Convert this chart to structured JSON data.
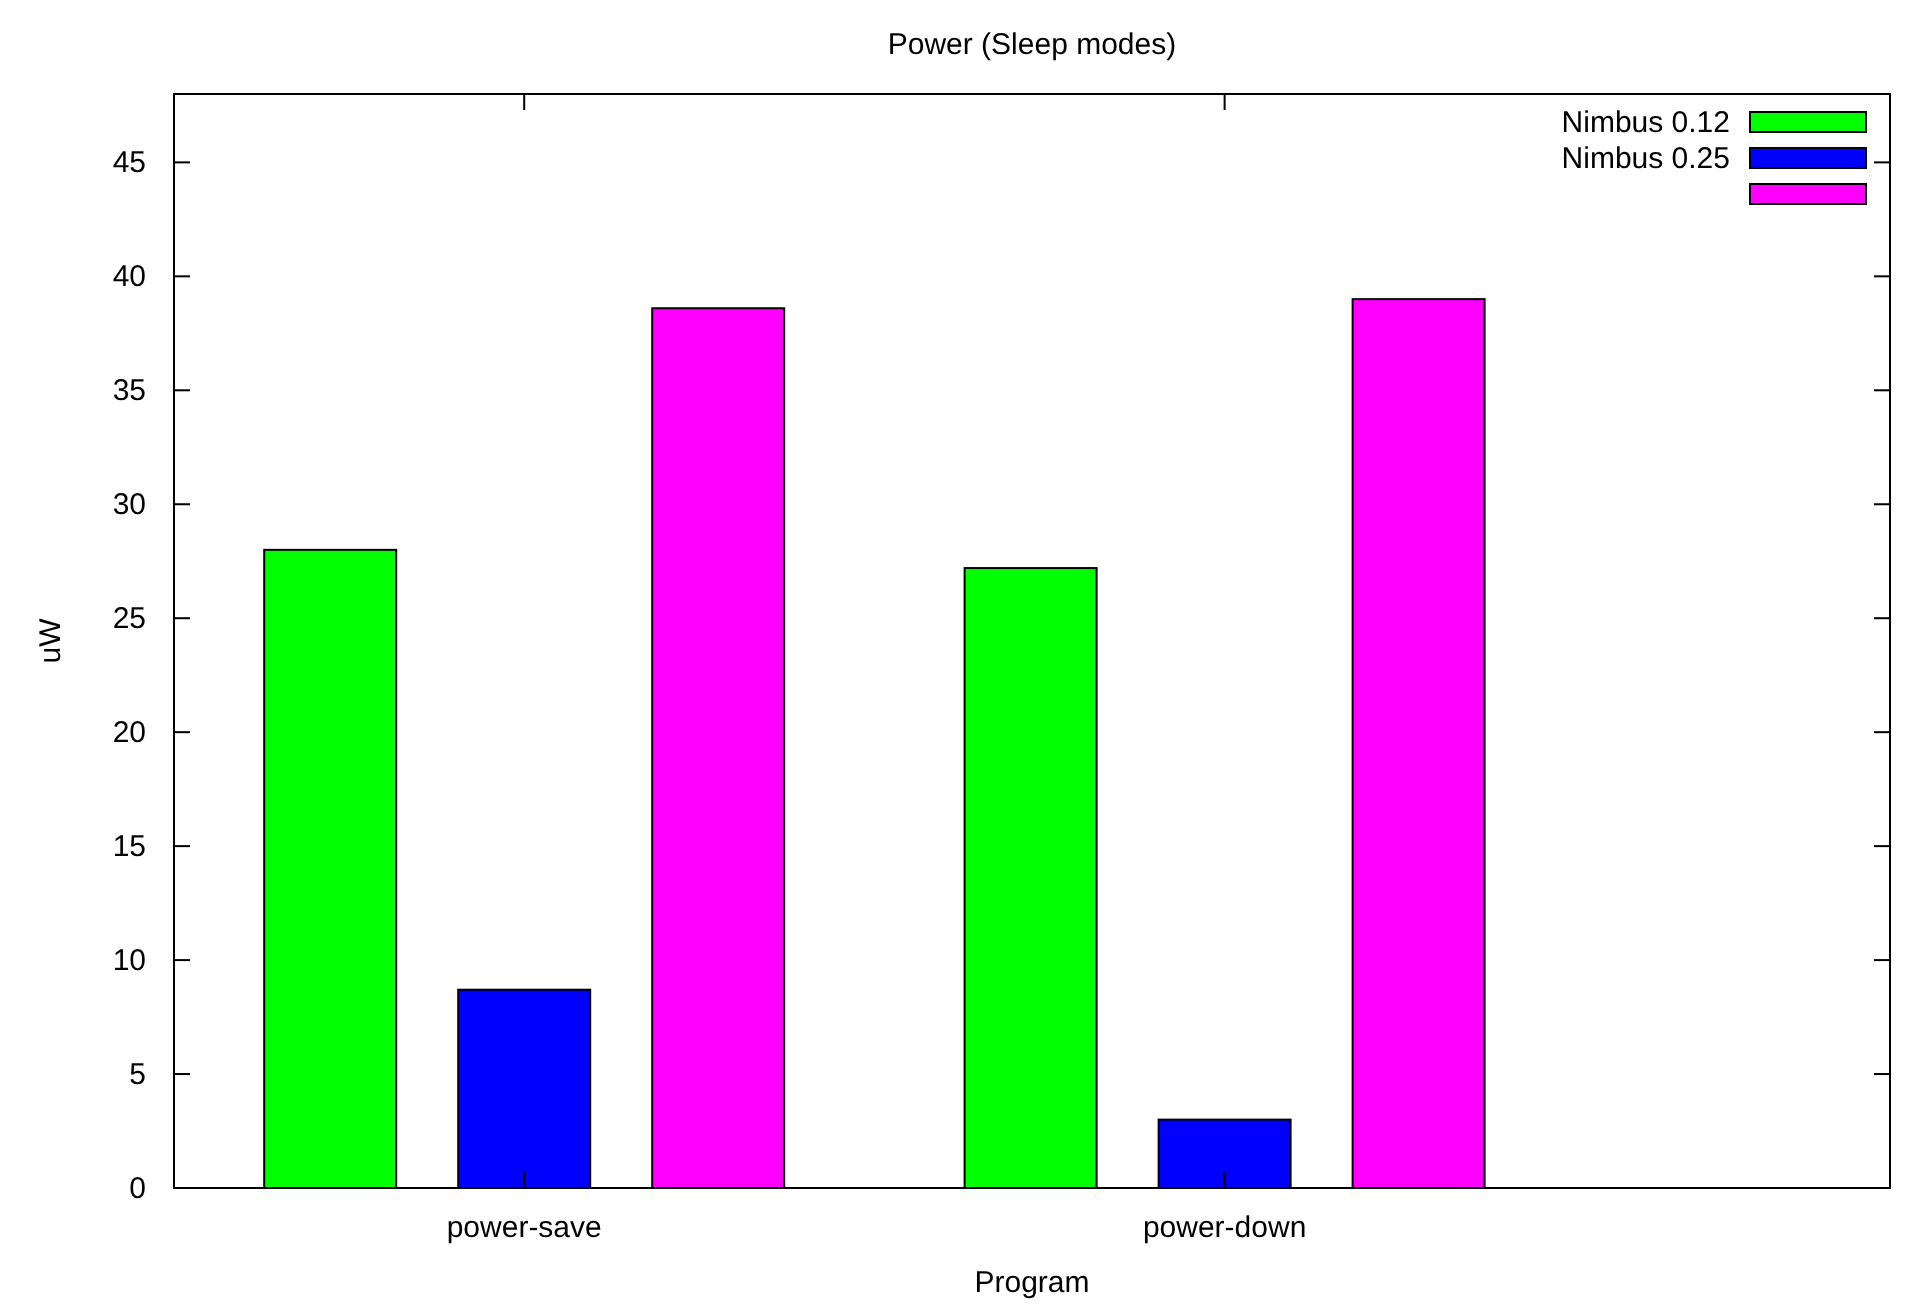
{
  "chart_data": {
    "type": "bar",
    "title": "Power (Sleep modes)",
    "xlabel": "Program",
    "ylabel": "uW",
    "categories": [
      "power-save",
      "power-down"
    ],
    "series": [
      {
        "name": "Nimbus 0.12",
        "color": "#00ff00",
        "values": [
          28,
          27.2
        ]
      },
      {
        "name": "Nimbus 0.25",
        "color": "#0000ff",
        "values": [
          8.7,
          3.0
        ]
      },
      {
        "color": "#ff00ff",
        "values": [
          38.6,
          39.0
        ]
      }
    ],
    "ylim": [
      0,
      48
    ],
    "yticks": [
      0,
      5,
      10,
      15,
      20,
      25,
      30,
      35,
      40,
      45
    ],
    "grid": false,
    "legend": "top right"
  }
}
